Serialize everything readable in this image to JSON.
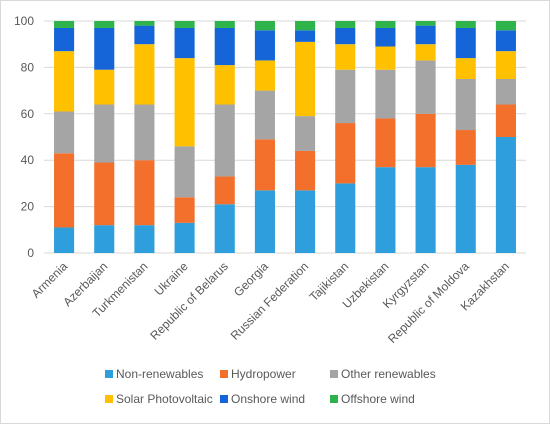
{
  "chart_data": {
    "type": "bar",
    "stacked": true,
    "title": "",
    "xlabel": "",
    "ylabel": "",
    "ylim": [
      0,
      100
    ],
    "yticks": [
      0,
      20,
      40,
      60,
      80,
      100
    ],
    "grid": "horizontal",
    "legend_position": "bottom",
    "categories": [
      "Armenia",
      "Azerbaijan",
      "Turkmenistan",
      "Ukraine",
      "Republic of Belarus",
      "Georgia",
      "Russian Federation",
      "Tajikistan",
      "Uzbekistan",
      "Kyrgyzstan",
      "Republic of Moldova",
      "Kazakhstan"
    ],
    "series": [
      {
        "name": "Non-renewables",
        "color": "#2e9fdc",
        "values": [
          11,
          12,
          12,
          13,
          21,
          27,
          27,
          30,
          37,
          37,
          38,
          50
        ]
      },
      {
        "name": "Hydropower",
        "color": "#f26f2c",
        "values": [
          32,
          27,
          28,
          11,
          12,
          22,
          17,
          26,
          21,
          23,
          15,
          14
        ]
      },
      {
        "name": "Other renewables",
        "color": "#a5a5a5",
        "values": [
          18,
          25,
          24,
          22,
          31,
          21,
          15,
          23,
          21,
          23,
          22,
          11
        ]
      },
      {
        "name": "Solar Photovoltaic",
        "color": "#ffc000",
        "values": [
          26,
          15,
          26,
          38,
          17,
          13,
          32,
          11,
          10,
          7,
          9,
          12
        ]
      },
      {
        "name": "Onshore wind",
        "color": "#1565d8",
        "values": [
          10,
          18,
          8,
          13,
          16,
          13,
          5,
          7,
          8,
          8,
          13,
          9
        ]
      },
      {
        "name": "Offshore wind",
        "color": "#2db34a",
        "values": [
          3,
          3,
          2,
          3,
          3,
          4,
          4,
          3,
          3,
          2,
          3,
          4
        ]
      }
    ]
  }
}
